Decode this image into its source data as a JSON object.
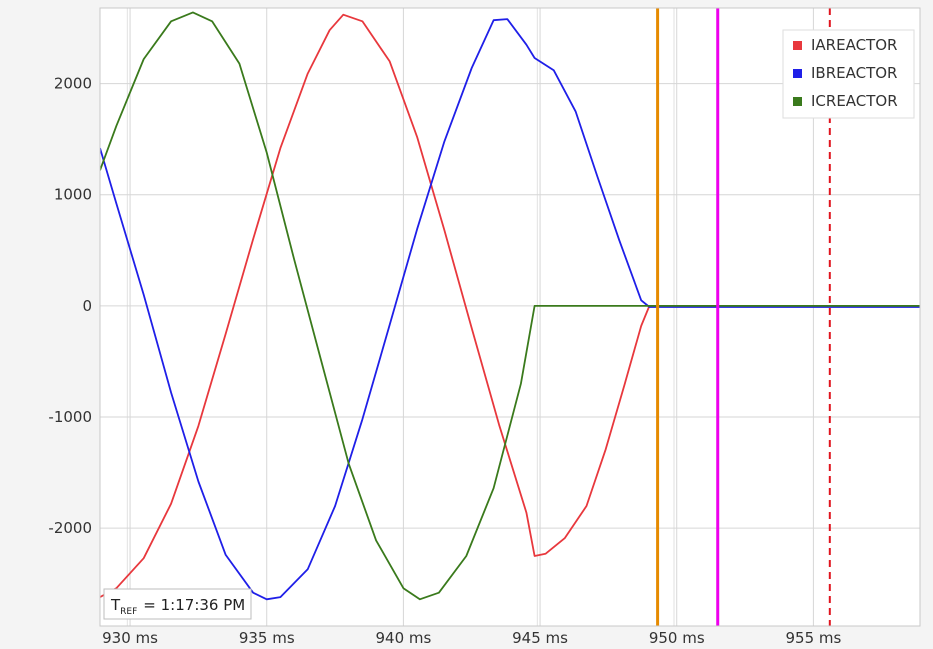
{
  "chart_data": {
    "type": "line",
    "title": "",
    "xlabel": "",
    "ylabel": "",
    "xlim": [
      928.9,
      958.9
    ],
    "ylim": [
      -2880,
      2680
    ],
    "grid": true,
    "legend_position": "top-right",
    "x_ticks": [
      {
        "value": 930,
        "label": "930 ms"
      },
      {
        "value": 935,
        "label": "935 ms"
      },
      {
        "value": 940,
        "label": "940 ms"
      },
      {
        "value": 945,
        "label": "945 ms"
      },
      {
        "value": 950,
        "label": "950 ms"
      },
      {
        "value": 955,
        "label": "955 ms"
      }
    ],
    "x_minor_grid": [
      929.9,
      944.9,
      949.9
    ],
    "y_ticks": [
      {
        "value": 2000,
        "label": "2000"
      },
      {
        "value": 1000,
        "label": "1000"
      },
      {
        "value": 0,
        "label": "0"
      },
      {
        "value": -1000,
        "label": "-1000"
      },
      {
        "value": -2000,
        "label": "-2000"
      }
    ],
    "series": [
      {
        "name": "IAREACTOR",
        "color": "#e8383d",
        "points": [
          [
            928.9,
            -2620
          ],
          [
            929.5,
            -2540
          ],
          [
            930.5,
            -2270
          ],
          [
            931.5,
            -1780
          ],
          [
            932.5,
            -1080
          ],
          [
            933.5,
            -250
          ],
          [
            934.5,
            600
          ],
          [
            935.5,
            1420
          ],
          [
            936.5,
            2090
          ],
          [
            937.3,
            2480
          ],
          [
            937.8,
            2620
          ],
          [
            938.5,
            2560
          ],
          [
            939.5,
            2200
          ],
          [
            940.5,
            1520
          ],
          [
            941.5,
            680
          ],
          [
            942.5,
            -200
          ],
          [
            943.5,
            -1070
          ],
          [
            944.5,
            -1860
          ],
          [
            944.8,
            -2250
          ],
          [
            945.2,
            -2230
          ],
          [
            945.9,
            -2090
          ],
          [
            946.7,
            -1800
          ],
          [
            947.4,
            -1290
          ],
          [
            948.1,
            -700
          ],
          [
            948.7,
            -180
          ],
          [
            949.0,
            0
          ],
          [
            958.9,
            0
          ]
        ]
      },
      {
        "name": "IBREACTOR",
        "color": "#1f1fe8",
        "points": [
          [
            928.9,
            1420
          ],
          [
            929.5,
            920
          ],
          [
            930.5,
            100
          ],
          [
            931.5,
            -780
          ],
          [
            932.5,
            -1580
          ],
          [
            933.5,
            -2240
          ],
          [
            934.5,
            -2580
          ],
          [
            935.0,
            -2640
          ],
          [
            935.5,
            -2620
          ],
          [
            936.5,
            -2370
          ],
          [
            937.5,
            -1800
          ],
          [
            938.5,
            -1020
          ],
          [
            939.5,
            -170
          ],
          [
            940.5,
            690
          ],
          [
            941.5,
            1480
          ],
          [
            942.5,
            2140
          ],
          [
            943.3,
            2570
          ],
          [
            943.8,
            2580
          ],
          [
            944.5,
            2350
          ],
          [
            944.8,
            2230
          ],
          [
            945.5,
            2120
          ],
          [
            946.3,
            1750
          ],
          [
            947.1,
            1160
          ],
          [
            947.9,
            590
          ],
          [
            948.7,
            50
          ],
          [
            949.0,
            -10
          ],
          [
            958.9,
            -10
          ]
        ]
      },
      {
        "name": "ICREACTOR",
        "color": "#3a7a1c",
        "points": [
          [
            928.9,
            1220
          ],
          [
            929.5,
            1620
          ],
          [
            930.5,
            2220
          ],
          [
            931.5,
            2560
          ],
          [
            932.3,
            2640
          ],
          [
            933.0,
            2560
          ],
          [
            934.0,
            2180
          ],
          [
            935.0,
            1380
          ],
          [
            936.0,
            420
          ],
          [
            937.0,
            -500
          ],
          [
            938.0,
            -1420
          ],
          [
            939.0,
            -2110
          ],
          [
            940.0,
            -2540
          ],
          [
            940.6,
            -2640
          ],
          [
            941.3,
            -2580
          ],
          [
            942.3,
            -2250
          ],
          [
            943.3,
            -1640
          ],
          [
            944.3,
            -700
          ],
          [
            944.8,
            0
          ],
          [
            958.9,
            0
          ]
        ]
      }
    ],
    "markers": [
      {
        "x": 949.3,
        "color": "#e68a00",
        "style": "solid"
      },
      {
        "x": 951.5,
        "color": "#ee00ee",
        "style": "solid"
      },
      {
        "x": 955.6,
        "color": "#e0141e",
        "style": "dashed"
      }
    ],
    "reference": {
      "prefix": "T",
      "subscript": "REF",
      "value": "= 1:17:36 PM"
    }
  }
}
